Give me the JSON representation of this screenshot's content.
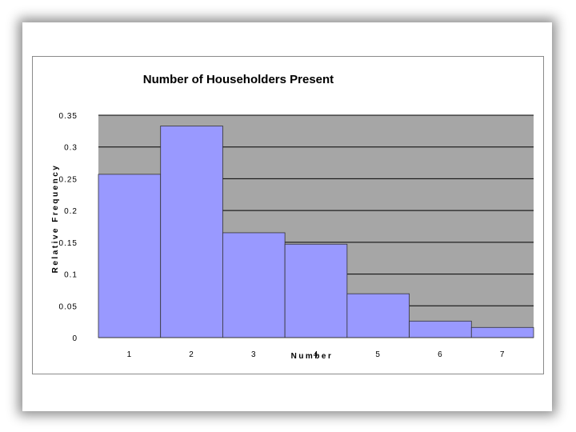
{
  "chart_data": {
    "type": "bar",
    "title": "Number of Householders Present",
    "xlabel": "Number",
    "ylabel": "Relative Frequency",
    "categories": [
      "1",
      "2",
      "3",
      "4",
      "5",
      "6",
      "7"
    ],
    "values": [
      0.257,
      0.333,
      0.165,
      0.147,
      0.069,
      0.026,
      0.016
    ],
    "ylim": [
      0,
      0.35
    ],
    "yticks": [
      "0",
      "0.05",
      "0.1",
      "0.15",
      "0.2",
      "0.25",
      "0.3",
      "0.35"
    ],
    "grid": true,
    "legend": "none",
    "colors": {
      "bar_fill": "#9999ff",
      "bar_stroke": "#333333",
      "plot_background": "#a6a6a6",
      "gridline": "#000000"
    }
  }
}
